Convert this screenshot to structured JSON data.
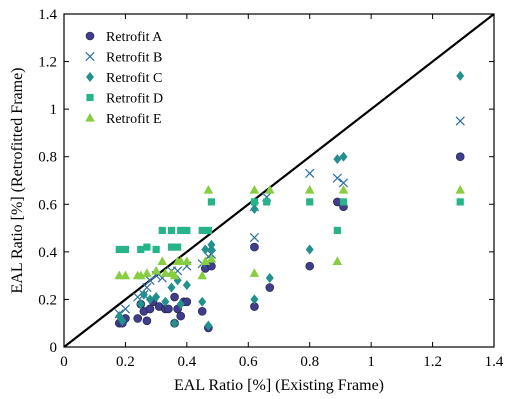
{
  "chart_data": {
    "type": "scatter",
    "title": "",
    "xlabel": "EAL Ratio [%] (Existing Frame)",
    "ylabel": "EAL Ratio [%] (Retrofitted Frame)",
    "xlim": [
      0,
      1.4
    ],
    "ylim": [
      0,
      1.4
    ],
    "xticks": [
      0,
      0.2,
      0.4,
      0.6,
      0.8,
      1,
      1.2,
      1.4
    ],
    "yticks": [
      0,
      0.2,
      0.4,
      0.6,
      0.8,
      1,
      1.2,
      1.4
    ],
    "xtick_labels": [
      "0",
      "0.2",
      "0.4",
      "0.6",
      "0.8",
      "1",
      "1.2",
      "1.4"
    ],
    "ytick_labels": [
      "0",
      "0.2",
      "0.4",
      "0.6",
      "0.8",
      "1",
      "1.2",
      "1.4"
    ],
    "grid": false,
    "legend_position": "top-left",
    "reference_line": {
      "x": [
        0,
        1.4
      ],
      "y": [
        0,
        1.4
      ],
      "color": "#000000"
    },
    "series": [
      {
        "name": "Retrofit A",
        "marker": "circle",
        "color": "#3f3d8c",
        "points": [
          [
            0.18,
            0.1
          ],
          [
            0.19,
            0.1
          ],
          [
            0.2,
            0.12
          ],
          [
            0.24,
            0.12
          ],
          [
            0.25,
            0.18
          ],
          [
            0.26,
            0.15
          ],
          [
            0.27,
            0.11
          ],
          [
            0.28,
            0.16
          ],
          [
            0.29,
            0.19
          ],
          [
            0.31,
            0.17
          ],
          [
            0.33,
            0.16
          ],
          [
            0.34,
            0.16
          ],
          [
            0.36,
            0.1
          ],
          [
            0.36,
            0.21
          ],
          [
            0.37,
            0.16
          ],
          [
            0.38,
            0.13
          ],
          [
            0.39,
            0.19
          ],
          [
            0.4,
            0.19
          ],
          [
            0.45,
            0.15
          ],
          [
            0.46,
            0.33
          ],
          [
            0.47,
            0.08
          ],
          [
            0.48,
            0.34
          ],
          [
            0.62,
            0.17
          ],
          [
            0.62,
            0.42
          ],
          [
            0.67,
            0.25
          ],
          [
            0.8,
            0.34
          ],
          [
            0.89,
            0.61
          ],
          [
            0.91,
            0.59
          ],
          [
            1.29,
            0.8
          ]
        ]
      },
      {
        "name": "Retrofit B",
        "marker": "x",
        "color": "#2c6fa0",
        "points": [
          [
            0.18,
            0.14
          ],
          [
            0.2,
            0.16
          ],
          [
            0.24,
            0.21
          ],
          [
            0.26,
            0.22
          ],
          [
            0.27,
            0.25
          ],
          [
            0.28,
            0.28
          ],
          [
            0.3,
            0.3
          ],
          [
            0.32,
            0.29
          ],
          [
            0.35,
            0.32
          ],
          [
            0.37,
            0.32
          ],
          [
            0.4,
            0.34
          ],
          [
            0.45,
            0.35
          ],
          [
            0.47,
            0.38
          ],
          [
            0.48,
            0.39
          ],
          [
            0.62,
            0.46
          ],
          [
            0.62,
            0.59
          ],
          [
            0.66,
            0.63
          ],
          [
            0.8,
            0.73
          ],
          [
            0.89,
            0.71
          ],
          [
            0.91,
            0.69
          ],
          [
            1.29,
            0.95
          ]
        ]
      },
      {
        "name": "Retrofit C",
        "marker": "diamond",
        "color": "#22908c",
        "points": [
          [
            0.18,
            0.13
          ],
          [
            0.19,
            0.11
          ],
          [
            0.25,
            0.18
          ],
          [
            0.26,
            0.22
          ],
          [
            0.28,
            0.2
          ],
          [
            0.3,
            0.21
          ],
          [
            0.33,
            0.19
          ],
          [
            0.35,
            0.25
          ],
          [
            0.36,
            0.1
          ],
          [
            0.37,
            0.28
          ],
          [
            0.38,
            0.18
          ],
          [
            0.4,
            0.26
          ],
          [
            0.45,
            0.19
          ],
          [
            0.46,
            0.41
          ],
          [
            0.47,
            0.09
          ],
          [
            0.48,
            0.41
          ],
          [
            0.48,
            0.43
          ],
          [
            0.62,
            0.2
          ],
          [
            0.62,
            0.58
          ],
          [
            0.67,
            0.29
          ],
          [
            0.8,
            0.41
          ],
          [
            0.89,
            0.79
          ],
          [
            0.91,
            0.8
          ],
          [
            1.29,
            1.14
          ]
        ]
      },
      {
        "name": "Retrofit D",
        "marker": "square",
        "color": "#27b48a",
        "points": [
          [
            0.18,
            0.41
          ],
          [
            0.2,
            0.41
          ],
          [
            0.25,
            0.41
          ],
          [
            0.27,
            0.42
          ],
          [
            0.3,
            0.41
          ],
          [
            0.32,
            0.49
          ],
          [
            0.35,
            0.42
          ],
          [
            0.35,
            0.49
          ],
          [
            0.37,
            0.42
          ],
          [
            0.38,
            0.49
          ],
          [
            0.4,
            0.49
          ],
          [
            0.45,
            0.49
          ],
          [
            0.47,
            0.49
          ],
          [
            0.48,
            0.61
          ],
          [
            0.62,
            0.61
          ],
          [
            0.66,
            0.61
          ],
          [
            0.8,
            0.61
          ],
          [
            0.89,
            0.49
          ],
          [
            0.91,
            0.61
          ],
          [
            1.29,
            0.61
          ]
        ]
      },
      {
        "name": "Retrofit E",
        "marker": "triangle",
        "color": "#86cd3f",
        "points": [
          [
            0.18,
            0.3
          ],
          [
            0.2,
            0.3
          ],
          [
            0.24,
            0.3
          ],
          [
            0.25,
            0.3
          ],
          [
            0.27,
            0.31
          ],
          [
            0.3,
            0.32
          ],
          [
            0.32,
            0.36
          ],
          [
            0.33,
            0.31
          ],
          [
            0.35,
            0.31
          ],
          [
            0.36,
            0.3
          ],
          [
            0.37,
            0.36
          ],
          [
            0.38,
            0.36
          ],
          [
            0.4,
            0.36
          ],
          [
            0.45,
            0.3
          ],
          [
            0.46,
            0.36
          ],
          [
            0.47,
            0.66
          ],
          [
            0.48,
            0.37
          ],
          [
            0.62,
            0.31
          ],
          [
            0.62,
            0.66
          ],
          [
            0.67,
            0.66
          ],
          [
            0.8,
            0.66
          ],
          [
            0.89,
            0.36
          ],
          [
            0.91,
            0.66
          ],
          [
            1.29,
            0.66
          ]
        ]
      }
    ]
  }
}
